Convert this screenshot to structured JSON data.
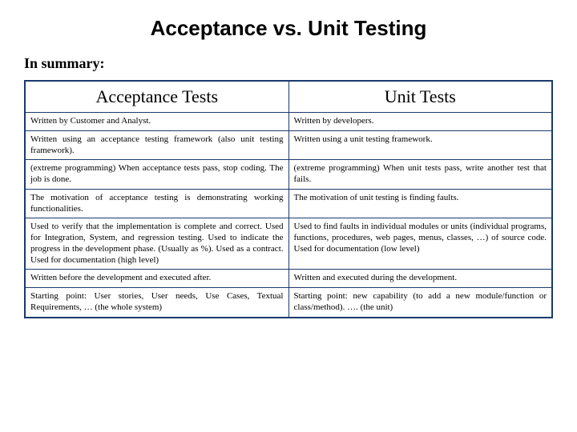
{
  "title": "Acceptance vs. Unit Testing",
  "summary_label": "In summary:",
  "columns": [
    "Acceptance Tests",
    "Unit Tests"
  ],
  "rows": [
    {
      "left": "Written by Customer and Analyst.",
      "right": "Written by developers."
    },
    {
      "left": "Written using an acceptance testing framework (also unit testing framework).",
      "right": "Written using a unit testing framework."
    },
    {
      "left": "(extreme programming) When acceptance tests pass, stop coding. The job is done.",
      "right": "(extreme programming) When unit tests pass, write another test that fails."
    },
    {
      "left": "The motivation of acceptance testing is demonstrating working functionalities.",
      "right": "The motivation of unit testing is finding faults."
    },
    {
      "left": "Used to verify that the implementation is complete and correct. Used for Integration, System, and regression testing. Used to indicate the progress in the development phase. (Usually as %). Used as a contract. Used for documentation (high level)",
      "right": "Used to find faults in individual modules or units (individual programs, functions, procedures, web pages, menus, classes, …) of source code. Used for documentation (low level)"
    },
    {
      "left": "Written before the development and executed after.",
      "right": "Written and executed during the development."
    },
    {
      "left": "Starting point: User stories, User needs, Use Cases, Textual Requirements, … (the whole system)",
      "right": "Starting point: new capability (to add a new module/function or class/method). …. (the unit)"
    }
  ],
  "styling": {
    "background_color": "#ffffff",
    "border_color": "#1a3a6e",
    "title_font": "Arial",
    "title_fontsize": 26,
    "body_font": "Times New Roman",
    "header_fontsize": 22,
    "cell_fontsize": 11,
    "summary_fontsize": 18
  }
}
